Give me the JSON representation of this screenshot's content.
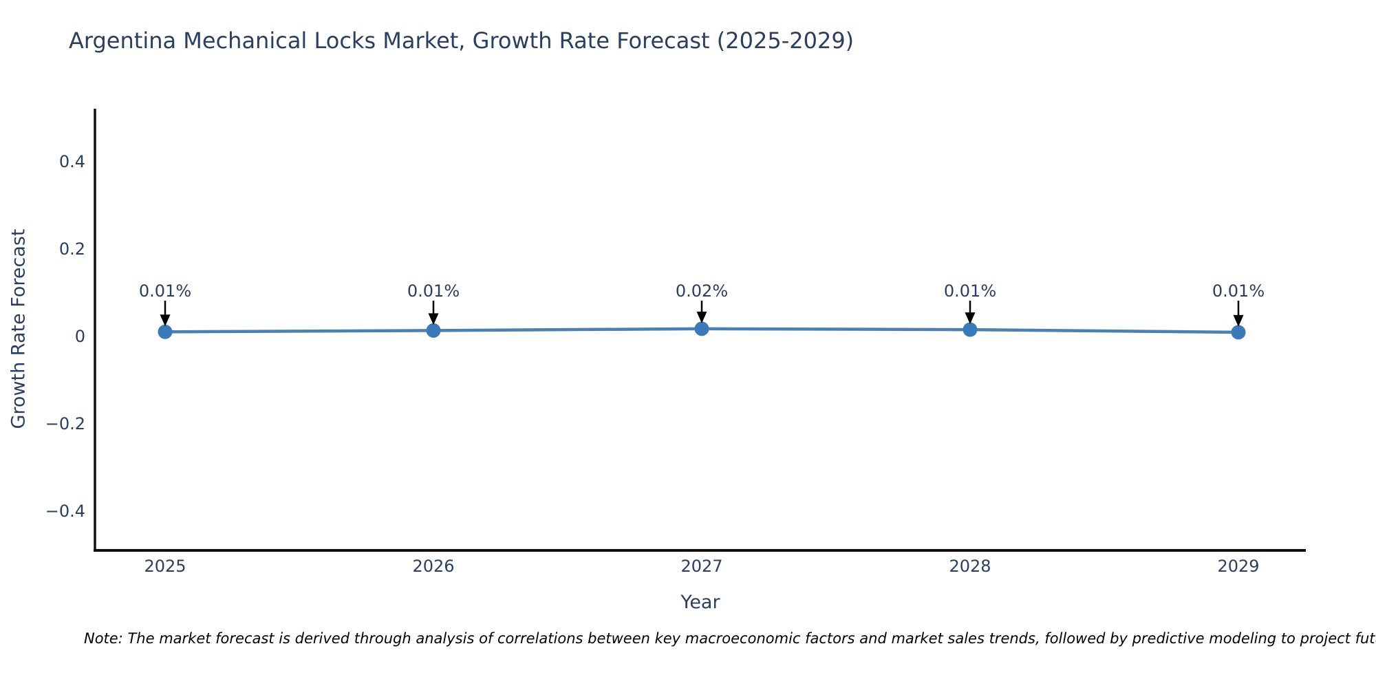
{
  "chart_data": {
    "type": "line",
    "title": "Argentina Mechanical Locks Market, Growth Rate Forecast (2025-2029)",
    "xlabel": "Year",
    "ylabel": "Growth Rate Forecast",
    "categories": [
      2025,
      2026,
      2027,
      2028,
      2029
    ],
    "xtick_labels": [
      "2025",
      "2026",
      "2027",
      "2028",
      "2029"
    ],
    "values": [
      0.009,
      0.012,
      0.016,
      0.014,
      0.008
    ],
    "point_labels": [
      "0.01%",
      "0.01%",
      "0.02%",
      "0.01%",
      "0.01%"
    ],
    "yticks": [
      0.4,
      0.2,
      0,
      -0.2,
      -0.4
    ],
    "ytick_labels": [
      "0.4",
      "0.2",
      "0",
      "−0.2",
      "−0.4"
    ],
    "ylim": [
      -0.49,
      0.52
    ],
    "grid": false,
    "legend": false,
    "line_color": "#4c81ad",
    "marker_color": "#3a7ab8",
    "axis_color": "#111111",
    "annotation_color": "#000000",
    "text_color": "#2a3f5f",
    "background_color": "#ffffff"
  },
  "note": {
    "text": "Note: The market forecast is derived through analysis of correlations between key macroeconomic factors and market sales trends, followed by predictive modeling to project future sa"
  }
}
